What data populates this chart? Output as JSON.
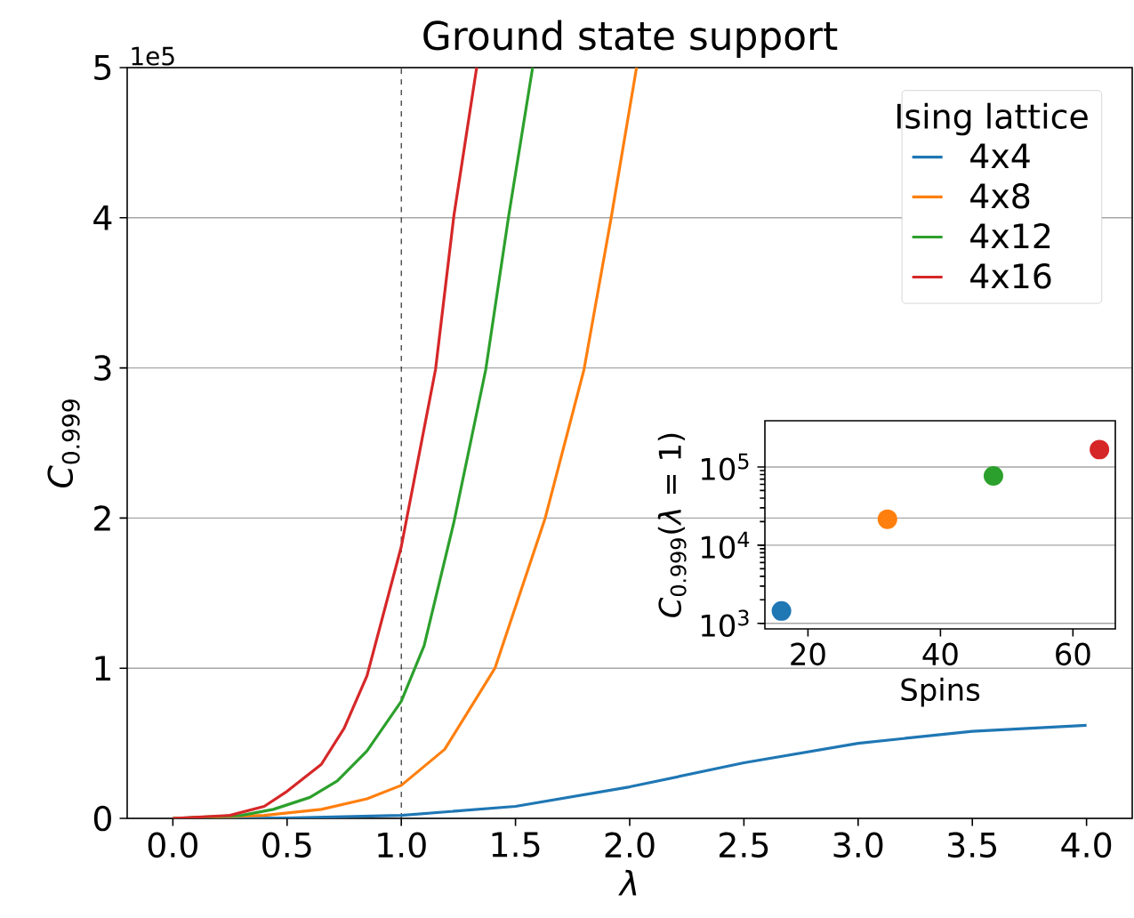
{
  "chart_data": [
    {
      "type": "line",
      "title": "Ground state support",
      "xlabel": "λ",
      "ylabel": "*C*$_{0.999}$",
      "legend_title": "Ising lattice",
      "legend": "top right",
      "grid": "y",
      "annotations": [
        "1e5"
      ],
      "xlim": [
        -0.2,
        4.2
      ],
      "xticks": [
        {
          "value": 0,
          "label": "0.0"
        },
        0.5,
        {
          "value": 1,
          "label": "1.0"
        },
        1.5,
        {
          "value": 2,
          "label": "2.0"
        },
        2.5,
        {
          "value": 3,
          "label": "3.0"
        },
        3.5,
        {
          "value": 4,
          "label": "4.0"
        }
      ],
      "ylim": [
        0,
        5
      ],
      "yticks": [
        0,
        1,
        2,
        3,
        4,
        5
      ],
      "ref_lines": [
        {
          "axis": "x",
          "value": 1,
          "color": "#000000",
          "line_style": "dashed"
        }
      ],
      "series": [
        {
          "name": "4x4",
          "color": "#1f77b4",
          "x": [
            0,
            0.5,
            1.0,
            1.5,
            2.0,
            2.5,
            3.0,
            3.5,
            4.0
          ],
          "values": [
            0,
            0.003,
            0.02,
            0.08,
            0.21,
            0.37,
            0.5,
            0.58,
            0.62
          ]
        },
        {
          "name": "4x8",
          "color": "#ff7f0e",
          "x": [
            0,
            0.4,
            0.65,
            0.85,
            1.0,
            1.19,
            1.41,
            1.63,
            1.8,
            1.92,
            2.03
          ],
          "values": [
            0,
            0.02,
            0.06,
            0.13,
            0.22,
            0.46,
            1.0,
            2.0,
            2.99,
            4.01,
            5.0
          ]
        },
        {
          "name": "4x12",
          "color": "#2ca02c",
          "x": [
            0,
            0.3,
            0.44,
            0.6,
            0.72,
            0.85,
            1.0,
            1.1,
            1.23,
            1.37,
            1.47,
            1.575
          ],
          "values": [
            0,
            0.02,
            0.06,
            0.14,
            0.25,
            0.45,
            0.78,
            1.15,
            1.97,
            2.99,
            4.01,
            5.0
          ]
        },
        {
          "name": "4x16",
          "color": "#d62728",
          "x": [
            0,
            0.25,
            0.4,
            0.5,
            0.65,
            0.75,
            0.85,
            1.0,
            1.15,
            1.23,
            1.33
          ],
          "values": [
            0,
            0.02,
            0.08,
            0.18,
            0.36,
            0.6,
            0.95,
            1.81,
            2.99,
            4.01,
            5.0
          ]
        }
      ]
    },
    {
      "type": "scatter",
      "xlabel": "Spins",
      "ylabel": "*C*$_{0.999}$(*λ* = 1)",
      "log": "y",
      "grid": "y",
      "marker": "circle",
      "x": [
        16,
        32,
        48,
        64
      ],
      "values": [
        1440,
        21500,
        77000,
        167000
      ],
      "colors": [
        "#1f77b4",
        "#ff7f0e",
        "#2ca02c",
        "#d62728"
      ],
      "xlim": [
        13.5,
        66.4
      ],
      "xticks": [
        20,
        40,
        60
      ],
      "ylim": [
        850,
        390000
      ],
      "yticks": [
        {
          "value": 1000,
          "label": "10$^{3}$"
        },
        {
          "value": 10000,
          "label": "10$^{4}$"
        },
        {
          "value": 100000,
          "label": "10$^{5}$"
        }
      ]
    }
  ]
}
